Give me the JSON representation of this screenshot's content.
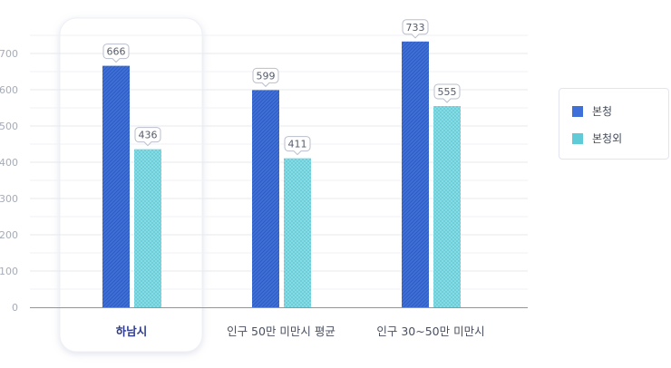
{
  "chart_data": {
    "type": "bar",
    "categories": [
      "하남시",
      "인구 50만 미만시 평균",
      "인구 30~50만 미만시"
    ],
    "highlighted_category": "하남시",
    "series": [
      {
        "name": "본청",
        "values": [
          666,
          599,
          733
        ],
        "color": "#3f6fd8",
        "pattern": "diagonal-hatch"
      },
      {
        "name": "본청외",
        "values": [
          436,
          411,
          555
        ],
        "color": "#5fcbd6",
        "pattern": "crosshatch"
      }
    ],
    "yticks": [
      "0",
      "100",
      "200",
      "300",
      "400",
      "500",
      "600",
      "700"
    ],
    "ylim": [
      0,
      800
    ],
    "grid": true,
    "legend_position": "right"
  }
}
